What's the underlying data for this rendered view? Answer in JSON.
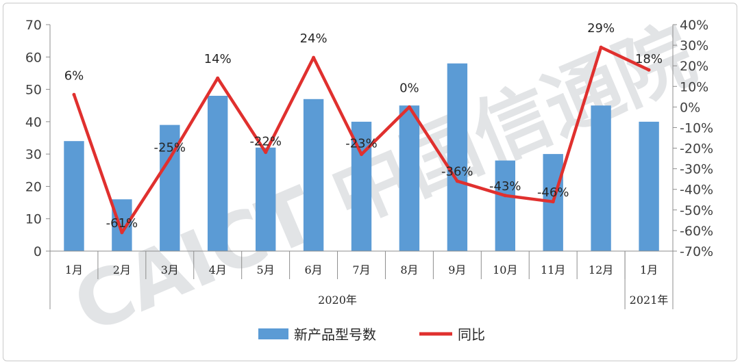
{
  "chart_data": {
    "type": "bar",
    "categories": [
      "1月",
      "2月",
      "3月",
      "4月",
      "5月",
      "6月",
      "7月",
      "8月",
      "9月",
      "10月",
      "11月",
      "12月",
      "1月"
    ],
    "groups": [
      {
        "label": "2020年",
        "count": 12
      },
      {
        "label": "2021年",
        "count": 1
      }
    ],
    "series": [
      {
        "name": "新产品型号数",
        "type": "bar",
        "axis": "left",
        "color": "#5b9bd5",
        "values": [
          34,
          16,
          39,
          48,
          32,
          47,
          40,
          45,
          58,
          28,
          30,
          45,
          40
        ]
      },
      {
        "name": "同比",
        "type": "line",
        "axis": "right",
        "color": "#e0302e",
        "values": [
          6,
          -61,
          -25,
          14,
          -22,
          24,
          -23,
          0,
          -36,
          -43,
          -46,
          29,
          18
        ],
        "labels": [
          "6%",
          "-61%",
          "-25%",
          "14%",
          "-22%",
          "24%",
          "-23%",
          "0%",
          "-36%",
          "-43%",
          "-46%",
          "29%",
          "18%"
        ]
      }
    ],
    "y_left": {
      "min": 0,
      "max": 70,
      "step": 10,
      "ticks": [
        "0",
        "10",
        "20",
        "30",
        "40",
        "50",
        "60",
        "70"
      ]
    },
    "y_right": {
      "min": -70,
      "max": 40,
      "step": 10,
      "ticks": [
        "-70%",
        "-60%",
        "-50%",
        "-40%",
        "-30%",
        "-20%",
        "-10%",
        "0%",
        "10%",
        "20%",
        "30%",
        "40%"
      ]
    },
    "grid": false,
    "legend": "bottom",
    "watermark": "CAICT 中国信通院"
  }
}
